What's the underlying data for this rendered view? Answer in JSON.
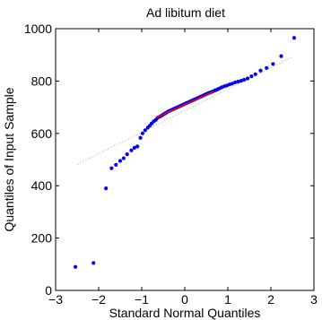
{
  "chart_data": {
    "type": "scatter",
    "title": "Ad libitum diet",
    "xlabel": "Standard Normal Quantiles",
    "ylabel": "Quantiles of Input Sample",
    "xlim": [
      -3,
      3
    ],
    "ylim": [
      0,
      1000
    ],
    "xticks": [
      -3,
      -2,
      -1,
      0,
      1,
      2,
      3
    ],
    "yticks": [
      0,
      200,
      400,
      600,
      800,
      1000
    ],
    "xtick_labels": [
      "−3",
      "−2",
      "−1",
      "0",
      "1",
      "2",
      "3"
    ],
    "ytick_labels": [
      "0",
      "200",
      "400",
      "600",
      "800",
      "1000"
    ],
    "grid": false,
    "reference_line": {
      "style": "dotted",
      "color": "#c8c8c8",
      "points": [
        [
          -2.5,
          481
        ],
        [
          2.5,
          892
        ]
      ]
    },
    "fit_segment": {
      "color": "#ff0000",
      "points": [
        [
          -0.67,
          660
        ],
        [
          0.67,
          760
        ]
      ]
    },
    "series": [
      {
        "color": "#0000ee",
        "points": [
          [
            -2.54,
            90
          ],
          [
            -2.12,
            105
          ],
          [
            -1.83,
            390
          ],
          [
            -1.7,
            467
          ],
          [
            -1.6,
            480
          ],
          [
            -1.5,
            495
          ],
          [
            -1.42,
            505
          ],
          [
            -1.34,
            520
          ],
          [
            -1.24,
            535
          ],
          [
            -1.17,
            545
          ],
          [
            -1.1,
            550
          ],
          [
            -1.03,
            583
          ],
          [
            -0.98,
            600
          ],
          [
            -0.92,
            612
          ],
          [
            -0.86,
            622
          ],
          [
            -0.81,
            630
          ],
          [
            -0.77,
            638
          ],
          [
            -0.72,
            646
          ],
          [
            -0.67,
            652
          ],
          [
            -0.63,
            660
          ],
          [
            -0.58,
            664
          ],
          [
            -0.54,
            668
          ],
          [
            -0.5,
            672
          ],
          [
            -0.46,
            676
          ],
          [
            -0.42,
            680
          ],
          [
            -0.38,
            684
          ],
          [
            -0.34,
            687
          ],
          [
            -0.3,
            690
          ],
          [
            -0.26,
            693
          ],
          [
            -0.22,
            696
          ],
          [
            -0.18,
            699
          ],
          [
            -0.14,
            702
          ],
          [
            -0.1,
            705
          ],
          [
            -0.06,
            708
          ],
          [
            -0.02,
            711
          ],
          [
            0.02,
            714
          ],
          [
            0.06,
            717
          ],
          [
            0.1,
            720
          ],
          [
            0.14,
            723
          ],
          [
            0.18,
            726
          ],
          [
            0.22,
            729
          ],
          [
            0.26,
            732
          ],
          [
            0.3,
            735
          ],
          [
            0.34,
            738
          ],
          [
            0.38,
            741
          ],
          [
            0.42,
            744
          ],
          [
            0.46,
            747
          ],
          [
            0.5,
            750
          ],
          [
            0.54,
            753
          ],
          [
            0.58,
            756
          ],
          [
            0.62,
            758
          ],
          [
            0.66,
            761
          ],
          [
            0.71,
            765
          ],
          [
            0.76,
            768
          ],
          [
            0.81,
            772
          ],
          [
            0.86,
            776
          ],
          [
            0.92,
            780
          ],
          [
            0.98,
            783
          ],
          [
            1.04,
            787
          ],
          [
            1.1,
            790
          ],
          [
            1.17,
            795
          ],
          [
            1.24,
            798
          ],
          [
            1.31,
            801
          ],
          [
            1.38,
            805
          ],
          [
            1.46,
            810
          ],
          [
            1.55,
            818
          ],
          [
            1.64,
            826
          ],
          [
            1.76,
            840
          ],
          [
            1.9,
            850
          ],
          [
            2.05,
            865
          ],
          [
            2.24,
            895
          ],
          [
            2.54,
            965
          ]
        ]
      }
    ]
  }
}
